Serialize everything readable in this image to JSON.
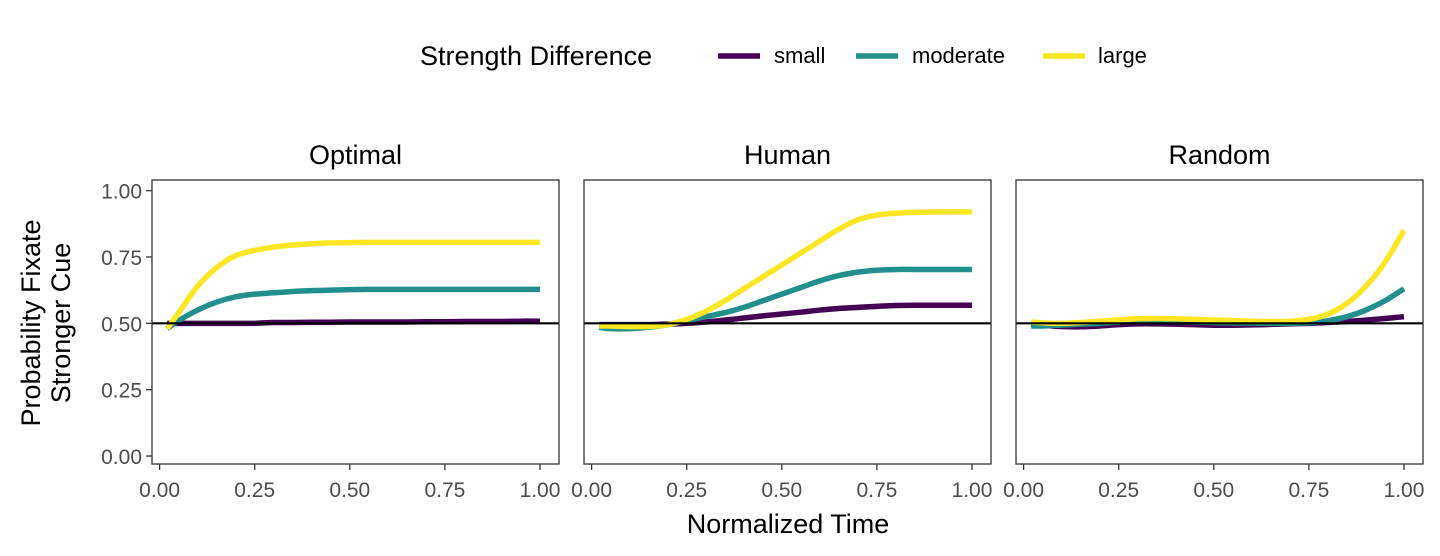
{
  "chart_data": {
    "type": "line",
    "legend": {
      "title": "Strength Difference",
      "position": "top",
      "entries": [
        {
          "label": "small",
          "color": "#440154"
        },
        {
          "label": "moderate",
          "color": "#21908C"
        },
        {
          "label": "large",
          "color": "#FDE725"
        }
      ]
    },
    "xlabel": "Normalized Time",
    "ylabel": [
      "Probability Fixate",
      "Stronger Cue"
    ],
    "xlim": [
      -0.02,
      1.05
    ],
    "ylim": [
      -0.03,
      1.04
    ],
    "xticks": [
      0,
      0.25,
      0.5,
      0.75,
      1
    ],
    "xtick_labels": [
      "0.00",
      "0.25",
      "0.50",
      "0.75",
      "1.00"
    ],
    "yticks": [
      0,
      0.25,
      0.5,
      0.75,
      1
    ],
    "ytick_labels": [
      "0.00",
      "0.25",
      "0.50",
      "0.75",
      "1.00"
    ],
    "reference_line_y": 0.5,
    "grid": false,
    "x": [
      0.02,
      0.05,
      0.1,
      0.15,
      0.2,
      0.25,
      0.3,
      0.35,
      0.4,
      0.45,
      0.5,
      0.55,
      0.6,
      0.65,
      0.7,
      0.75,
      0.8,
      0.85,
      0.9,
      0.95,
      1.0
    ],
    "panels": [
      {
        "title": "Optimal",
        "series": [
          {
            "name": "small",
            "values": [
              0.5,
              0.5,
              0.5,
              0.5,
              0.5,
              0.5,
              0.503,
              0.503,
              0.504,
              0.504,
              0.505,
              0.505,
              0.505,
              0.505,
              0.506,
              0.506,
              0.507,
              0.507,
              0.507,
              0.508,
              0.508
            ]
          },
          {
            "name": "moderate",
            "values": [
              0.48,
              0.51,
              0.55,
              0.58,
              0.6,
              0.61,
              0.615,
              0.62,
              0.623,
              0.625,
              0.627,
              0.628,
              0.628,
              0.628,
              0.628,
              0.628,
              0.628,
              0.628,
              0.628,
              0.628,
              0.628
            ]
          },
          {
            "name": "large",
            "values": [
              0.48,
              0.54,
              0.64,
              0.71,
              0.755,
              0.775,
              0.787,
              0.795,
              0.8,
              0.803,
              0.804,
              0.805,
              0.805,
              0.805,
              0.805,
              0.805,
              0.805,
              0.805,
              0.805,
              0.805,
              0.805
            ]
          }
        ]
      },
      {
        "title": "Human",
        "series": [
          {
            "name": "small",
            "values": [
              0.495,
              0.495,
              0.495,
              0.495,
              0.497,
              0.5,
              0.505,
              0.512,
              0.52,
              0.528,
              0.535,
              0.542,
              0.55,
              0.556,
              0.56,
              0.564,
              0.567,
              0.568,
              0.568,
              0.568,
              0.568
            ]
          },
          {
            "name": "moderate",
            "values": [
              0.485,
              0.48,
              0.48,
              0.485,
              0.495,
              0.51,
              0.525,
              0.54,
              0.56,
              0.585,
              0.61,
              0.635,
              0.66,
              0.68,
              0.693,
              0.7,
              0.703,
              0.703,
              0.703,
              0.703,
              0.703
            ]
          },
          {
            "name": "large",
            "values": [
              0.49,
              0.49,
              0.488,
              0.488,
              0.495,
              0.515,
              0.545,
              0.585,
              0.63,
              0.675,
              0.72,
              0.765,
              0.81,
              0.855,
              0.89,
              0.908,
              0.915,
              0.918,
              0.92,
              0.92,
              0.92
            ]
          }
        ]
      },
      {
        "title": "Random",
        "series": [
          {
            "name": "small",
            "values": [
              0.497,
              0.493,
              0.488,
              0.487,
              0.49,
              0.495,
              0.498,
              0.498,
              0.497,
              0.495,
              0.493,
              0.493,
              0.494,
              0.496,
              0.498,
              0.5,
              0.503,
              0.507,
              0.512,
              0.518,
              0.525
            ]
          },
          {
            "name": "moderate",
            "values": [
              0.49,
              0.49,
              0.493,
              0.497,
              0.5,
              0.505,
              0.508,
              0.508,
              0.507,
              0.505,
              0.503,
              0.502,
              0.501,
              0.5,
              0.5,
              0.502,
              0.51,
              0.525,
              0.55,
              0.585,
              0.63
            ]
          },
          {
            "name": "large",
            "values": [
              0.505,
              0.502,
              0.5,
              0.503,
              0.508,
              0.513,
              0.517,
              0.518,
              0.517,
              0.515,
              0.512,
              0.51,
              0.508,
              0.507,
              0.508,
              0.515,
              0.535,
              0.575,
              0.64,
              0.73,
              0.85
            ]
          }
        ]
      }
    ]
  }
}
